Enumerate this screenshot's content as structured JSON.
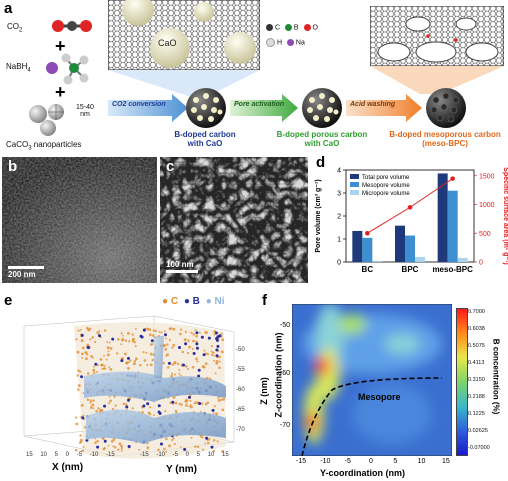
{
  "panel_a": {
    "label": "a",
    "reagents": {
      "co2": "CO",
      "co2_sub": "2",
      "nabh4": "NaBH",
      "nabh4_sub": "4",
      "caco3": "CaCO",
      "caco3_sub": "3",
      "caco3_suffix": " nanoparticles",
      "size": "15-40",
      "size_unit": "nm",
      "plus": "+"
    },
    "legend": {
      "c": "C",
      "b": "B",
      "o": "O",
      "h": "H",
      "na": "Na"
    },
    "cao_label": "CaO",
    "steps": [
      "CO2 conversion",
      "Pore activation",
      "Acid washing"
    ],
    "products": {
      "p1_line1": "B-doped carbon",
      "p1_line2": "with CaO",
      "p2_line1": "B-doped porous carbon",
      "p2_line2": "with CaO",
      "p3_line1": "B-doped mesoporous carbon",
      "p3_line2": "(meso-BPC)"
    }
  },
  "panel_b": {
    "label": "b",
    "scale": "200 nm"
  },
  "panel_c": {
    "label": "c",
    "scale": "100 nm"
  },
  "panel_e": {
    "label": "e",
    "legend": {
      "c": "C",
      "b": "B",
      "ni": "Ni"
    },
    "x_axis": "X (nm)",
    "y_axis": "Y (nm)",
    "z_axis": "Z (nm)",
    "x_ticks": [
      "15",
      "10",
      "5",
      "0",
      "-5",
      "-10",
      "-15"
    ],
    "y_ticks": [
      "-15",
      "-10",
      "-5",
      "0",
      "5",
      "10",
      "15"
    ],
    "z_ticks": [
      "-50",
      "-55",
      "-60",
      "-65",
      "-70"
    ]
  },
  "panel_f": {
    "label": "f",
    "xlabel": "Y-coordination (nm)",
    "ylabel": "Z-coordination (nm)",
    "x_ticks": [
      "-15",
      "-10",
      "-5",
      "0",
      "5",
      "10",
      "15"
    ],
    "y_ticks": [
      "-50",
      "-60",
      "-70"
    ],
    "annotation": "Mesopore",
    "colorbar_label": "B concentration (%)",
    "colorbar_ticks": [
      "0.7000",
      "0.6038",
      "0.5075",
      "0.4113",
      "0.3150",
      "0.2188",
      "0.1225",
      "0.02625",
      "-0.07000"
    ]
  },
  "chart_data": {
    "type": "bar",
    "panel_label": "d",
    "categories": [
      "BC",
      "BPC",
      "meso-BPC"
    ],
    "series": [
      {
        "name": "Total pore volume",
        "values": [
          1.35,
          1.58,
          3.85
        ],
        "color": "#1f3a7a"
      },
      {
        "name": "Mesopore volume",
        "values": [
          1.05,
          1.15,
          3.1
        ],
        "color": "#3d8fd1"
      },
      {
        "name": "Micropore volume",
        "values": [
          0.05,
          0.22,
          0.18
        ],
        "color": "#a9d3ef"
      }
    ],
    "line_series": {
      "name": "Specific surface area",
      "values": [
        500,
        950,
        1450
      ],
      "color": "#e02020"
    },
    "ylabel": "Pore volume (cm³ g⁻¹)",
    "ylabel_right": "Specific surface area (m² g⁻¹)",
    "ylim": [
      0,
      4
    ],
    "ylim_right": [
      0,
      1600
    ],
    "yticks": [
      "0",
      "1",
      "2",
      "3",
      "4"
    ],
    "yticks_right": [
      "0",
      "500",
      "1000",
      "1500"
    ]
  }
}
